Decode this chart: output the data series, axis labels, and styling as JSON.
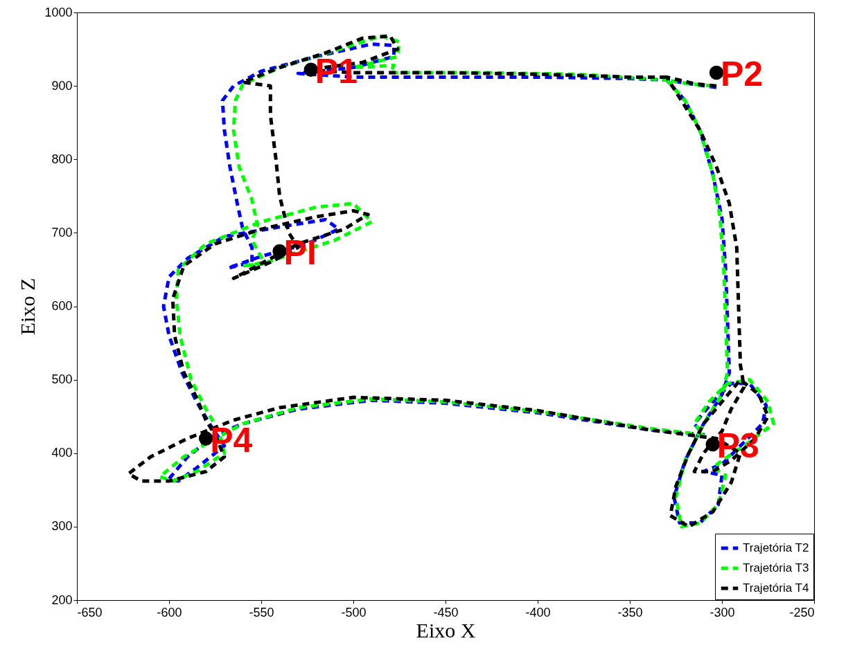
{
  "chart_data": {
    "type": "line",
    "xlabel": "Eixo X",
    "ylabel": "Eixo Z",
    "xlim": [
      -650,
      -250
    ],
    "ylim": [
      200,
      1000
    ],
    "xticks": [
      -650,
      -600,
      -550,
      -500,
      -450,
      -400,
      -350,
      -300,
      -250
    ],
    "yticks": [
      200,
      300,
      400,
      500,
      600,
      700,
      800,
      900,
      1000
    ],
    "grid": false,
    "legend": "bottom right",
    "line_style": "dashed",
    "series": [
      {
        "name": "Trajetória T2",
        "color": "#0000ff",
        "x": [
          -303,
          -315,
          -330,
          -320,
          -312,
          -305,
          -300,
          -298,
          -297,
          -296,
          -300,
          -310,
          -320,
          -326,
          -323,
          -312,
          -302,
          -300,
          -310,
          -300,
          -290,
          -278,
          -276,
          -285,
          -295,
          -305,
          -315,
          -310,
          -340,
          -400,
          -450,
          -490,
          -530,
          -560,
          -575,
          -590,
          -600,
          -595,
          -585,
          -570,
          -578,
          -585,
          -593,
          -600,
          -603,
          -600,
          -590,
          -570,
          -540,
          -515,
          -508,
          -525,
          -550,
          -568,
          -555,
          -555,
          -560,
          -563,
          -567,
          -570,
          -571,
          -565,
          -550,
          -520,
          -490,
          -478,
          -478,
          -500,
          -530,
          -500,
          -450,
          -400,
          -350,
          -330
        ],
        "values": [
          898,
          902,
          908,
          880,
          840,
          780,
          720,
          650,
          580,
          510,
          480,
          440,
          390,
          340,
          305,
          305,
          330,
          370,
          375,
          385,
          410,
          440,
          465,
          495,
          495,
          470,
          440,
          425,
          432,
          455,
          468,
          472,
          460,
          440,
          425,
          395,
          365,
          362,
          380,
          410,
          440,
          470,
          510,
          560,
          600,
          640,
          665,
          695,
          708,
          718,
          705,
          685,
          668,
          652,
          660,
          680,
          705,
          740,
          790,
          840,
          880,
          900,
          920,
          940,
          957,
          955,
          940,
          925,
          917,
          912,
          912,
          912,
          910,
          908
        ]
      },
      {
        "name": "Trajetória T3",
        "color": "#00ff00",
        "x": [
          -305,
          -318,
          -330,
          -320,
          -312,
          -305,
          -301,
          -299,
          -298,
          -297,
          -300,
          -310,
          -320,
          -325,
          -322,
          -312,
          -302,
          -298,
          -305,
          -300,
          -288,
          -272,
          -275,
          -285,
          -297,
          -307,
          -315,
          -310,
          -340,
          -400,
          -450,
          -490,
          -530,
          -560,
          -575,
          -592,
          -605,
          -598,
          -585,
          -570,
          -573,
          -580,
          -588,
          -594,
          -596,
          -595,
          -580,
          -550,
          -520,
          -500,
          -490,
          -510,
          -547,
          -560,
          -548,
          -555,
          -552,
          -555,
          -562,
          -565,
          -564,
          -560,
          -540,
          -510,
          -485,
          -475,
          -476,
          -500,
          -478,
          -480,
          -430,
          -380,
          -340,
          -330
        ],
        "values": [
          900,
          903,
          908,
          880,
          840,
          780,
          720,
          650,
          580,
          510,
          480,
          440,
          390,
          340,
          300,
          305,
          330,
          370,
          380,
          390,
          410,
          440,
          470,
          500,
          495,
          470,
          440,
          425,
          434,
          457,
          470,
          474,
          462,
          440,
          420,
          395,
          368,
          362,
          375,
          400,
          430,
          460,
          500,
          560,
          610,
          650,
          685,
          715,
          735,
          740,
          715,
          690,
          660,
          655,
          658,
          690,
          710,
          745,
          790,
          840,
          880,
          902,
          925,
          948,
          968,
          960,
          940,
          925,
          928,
          918,
          918,
          916,
          910,
          908
        ]
      },
      {
        "name": "Trajetória T4",
        "color": "#000000",
        "x": [
          -303,
          -315,
          -330,
          -322,
          -312,
          -303,
          -296,
          -292,
          -291,
          -290,
          -288,
          -295,
          -300,
          -310,
          -315,
          -305,
          -295,
          -282,
          -275,
          -280,
          -290,
          -300,
          -310,
          -318,
          -325,
          -328,
          -318,
          -305,
          -295,
          -290,
          -303,
          -340,
          -400,
          -450,
          -500,
          -540,
          -565,
          -590,
          -610,
          -622,
          -615,
          -600,
          -580,
          -570,
          -575,
          -580,
          -585,
          -592,
          -597,
          -598,
          -592,
          -575,
          -550,
          -520,
          -500,
          -492,
          -505,
          -530,
          -565,
          -545,
          -530,
          -535,
          -540,
          -542,
          -545,
          -545,
          -560,
          -540,
          -515,
          -495,
          -480,
          -476,
          -495,
          -525,
          -500,
          -450,
          -400,
          -350,
          -330
        ],
        "values": [
          900,
          903,
          912,
          880,
          840,
          790,
          740,
          680,
          600,
          520,
          490,
          460,
          430,
          400,
          375,
          375,
          390,
          420,
          450,
          480,
          500,
          470,
          440,
          400,
          355,
          315,
          300,
          320,
          360,
          400,
          420,
          432,
          458,
          472,
          476,
          462,
          445,
          420,
          395,
          372,
          362,
          362,
          375,
          395,
          425,
          445,
          475,
          510,
          560,
          610,
          655,
          685,
          705,
          722,
          730,
          725,
          705,
          685,
          638,
          660,
          680,
          700,
          750,
          800,
          860,
          900,
          905,
          925,
          945,
          965,
          968,
          950,
          932,
          922,
          918,
          918,
          916,
          912,
          912
        ]
      },
      {
        "type": "scatter",
        "color": "#000000",
        "marker": "circle",
        "x": [
          -540,
          -523,
          -303,
          -305,
          -580
        ],
        "values": [
          675,
          922,
          918,
          412,
          420
        ]
      }
    ],
    "annotations": [
      {
        "text": "PI",
        "x": -540,
        "y": 675
      },
      {
        "text": "P1",
        "x": -523,
        "y": 922
      },
      {
        "text": "P2",
        "x": -303,
        "y": 918
      },
      {
        "text": "P3",
        "x": -305,
        "y": 412
      },
      {
        "text": "P4",
        "x": -580,
        "y": 420
      }
    ]
  }
}
